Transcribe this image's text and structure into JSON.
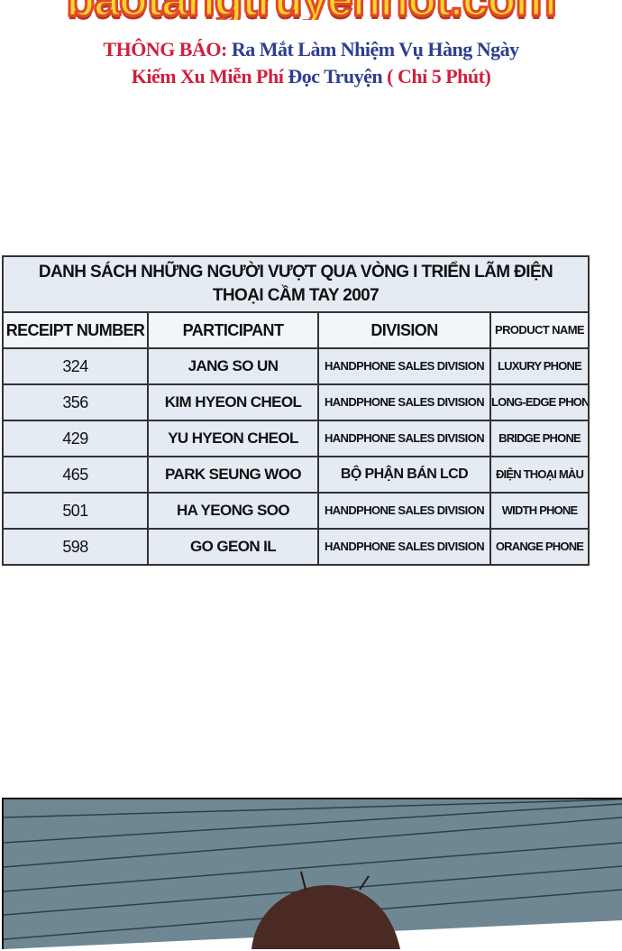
{
  "header": {
    "logo_text": "baotangtruyenhot.com",
    "notice_label": "THÔNG BÁO:",
    "notice_line1": "Ra Mắt Làm Nhiệm Vụ Hàng Ngày",
    "notice_line2_red": "Kiếm Xu Miễn Phí",
    "notice_line2_blue": "Đọc Truyện",
    "notice_line2_end": "( Chỉ 5 Phút)"
  },
  "table": {
    "title": "DANH SÁCH NHỮNG NGƯỜI VƯỢT QUA VÒNG I TRIỂN LÃM ĐIỆN THOẠI CẦM TAY 2007",
    "columns": [
      "RECEIPT NUMBER",
      "PARTICIPANT",
      "DIVISION",
      "PRODUCT NAME"
    ],
    "rows": [
      [
        "324",
        "JANG SO UN",
        "HANDPHONE SALES DIVISION",
        "LUXURY PHONE"
      ],
      [
        "356",
        "KIM HYEON CHEOL",
        "HANDPHONE SALES DIVISION",
        "LONG-EDGE PHONE"
      ],
      [
        "429",
        "YU HYEON CHEOL",
        "HANDPHONE SALES DIVISION",
        "BRIDGE PHONE"
      ],
      [
        "465",
        "PARK SEUNG WOO",
        "BỘ PHẬN BÁN LCD",
        "ĐIỆN THOẠI MÀU"
      ],
      [
        "501",
        "HA YEONG SOO",
        "HANDPHONE SALES DIVISION",
        "WIDTH PHONE"
      ],
      [
        "598",
        "GO GEON IL",
        "HANDPHONE SALES DIVISION",
        "ORANGE PHONE"
      ]
    ]
  },
  "colors": {
    "panel_sky": "#6f8792",
    "hair": "#4a2a22",
    "title_red": "#d0203f",
    "title_blue": "#2d3f8e"
  }
}
